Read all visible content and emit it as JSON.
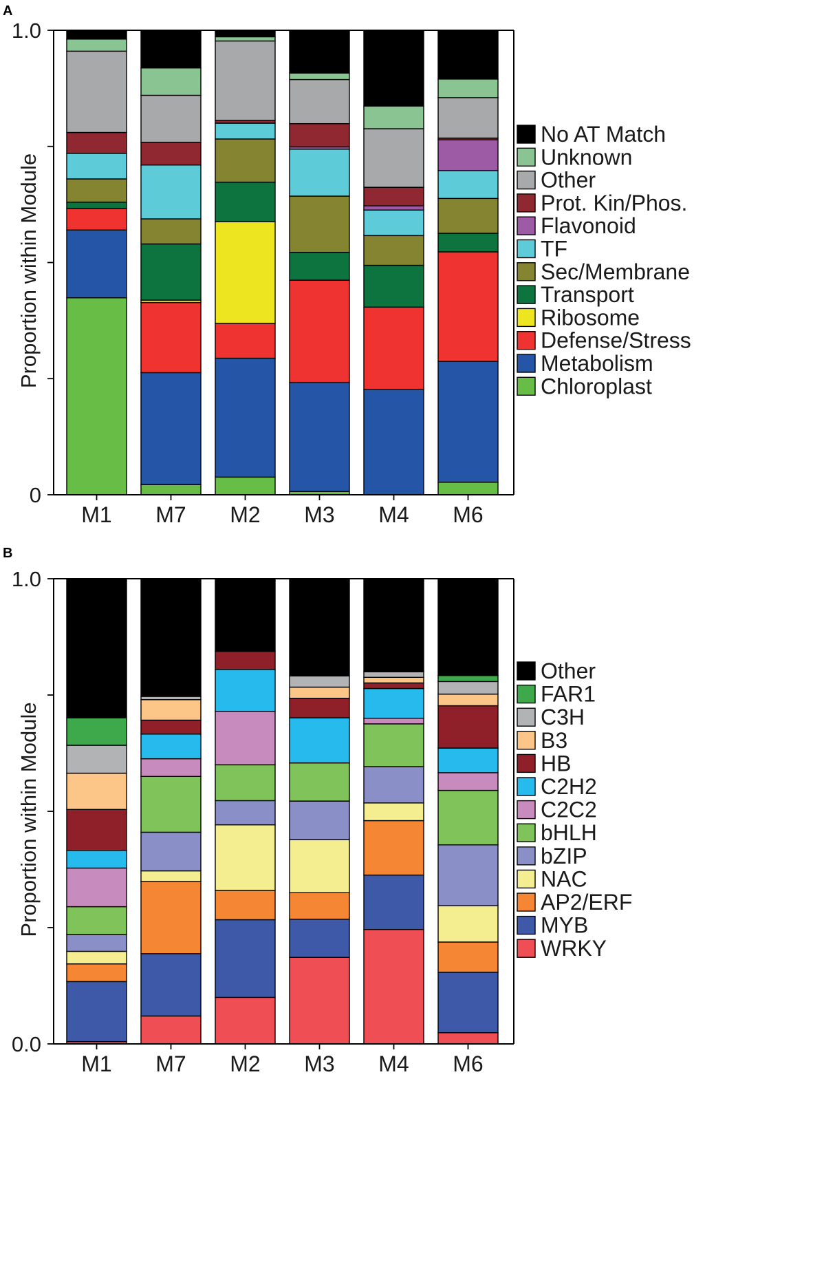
{
  "chart_data": [
    {
      "id": "A",
      "panel_label": "A",
      "type": "bar",
      "stacked": true,
      "ylabel": "Proportion within Module",
      "ylim": [
        0,
        1
      ],
      "yticks": [
        0,
        0.25,
        0.5,
        0.75,
        1.0
      ],
      "ytick_labels": [
        "0",
        "",
        "",
        "",
        "1.0"
      ],
      "categories": [
        "M1",
        "M7",
        "M2",
        "M3",
        "M4",
        "M6"
      ],
      "series": [
        {
          "name": "Chloroplast",
          "color": "#67bd45",
          "values": [
            0.424,
            0.022,
            0.038,
            0.007,
            0.0,
            0.027
          ]
        },
        {
          "name": "Metabolism",
          "color": "#2455a6",
          "values": [
            0.146,
            0.241,
            0.256,
            0.235,
            0.227,
            0.26
          ]
        },
        {
          "name": "Defense/Stress",
          "color": "#ee3331",
          "values": [
            0.046,
            0.151,
            0.075,
            0.22,
            0.177,
            0.236
          ]
        },
        {
          "name": "Ribosome",
          "color": "#eee521",
          "values": [
            0.0,
            0.005,
            0.219,
            0.0,
            0.0,
            0.0
          ]
        },
        {
          "name": "Transport",
          "color": "#0d7440",
          "values": [
            0.014,
            0.121,
            0.085,
            0.06,
            0.09,
            0.04
          ]
        },
        {
          "name": "Sec/Membrane",
          "color": "#848431",
          "values": [
            0.05,
            0.054,
            0.093,
            0.121,
            0.064,
            0.075
          ]
        },
        {
          "name": "TF",
          "color": "#5ecbd9",
          "values": [
            0.055,
            0.116,
            0.034,
            0.101,
            0.055,
            0.06
          ]
        },
        {
          "name": "Flavonoid",
          "color": "#9d5aa5",
          "values": [
            0.0,
            0.0,
            0.0,
            0.005,
            0.009,
            0.066
          ]
        },
        {
          "name": "Prot. Kin/Phos.",
          "color": "#8f2831",
          "values": [
            0.045,
            0.049,
            0.006,
            0.05,
            0.04,
            0.004
          ]
        },
        {
          "name": "Other",
          "color": "#a7a9ab",
          "values": [
            0.175,
            0.101,
            0.171,
            0.095,
            0.126,
            0.087
          ]
        },
        {
          "name": "Unknown",
          "color": "#8bc493",
          "values": [
            0.026,
            0.059,
            0.009,
            0.014,
            0.049,
            0.04
          ]
        },
        {
          "name": "No AT Match",
          "color": "#000000",
          "values": [
            0.019,
            0.081,
            0.014,
            0.092,
            0.163,
            0.105
          ]
        }
      ]
    },
    {
      "id": "B",
      "panel_label": "B",
      "type": "bar",
      "stacked": true,
      "ylabel": "Proportion within Module",
      "ylim": [
        0,
        1
      ],
      "yticks": [
        0,
        0.25,
        0.5,
        0.75,
        1.0
      ],
      "ytick_labels": [
        "0.0",
        "",
        "",
        "",
        "1.0"
      ],
      "categories": [
        "M1",
        "M7",
        "M2",
        "M3",
        "M4",
        "M6"
      ],
      "series": [
        {
          "name": "WRKY",
          "color": "#ef4f54",
          "values": [
            0.005,
            0.06,
            0.1,
            0.186,
            0.246,
            0.024
          ]
        },
        {
          "name": "MYB",
          "color": "#3d59a8",
          "values": [
            0.129,
            0.134,
            0.167,
            0.082,
            0.117,
            0.13
          ]
        },
        {
          "name": "AP2/ERF",
          "color": "#f58634",
          "values": [
            0.038,
            0.155,
            0.063,
            0.057,
            0.117,
            0.065
          ]
        },
        {
          "name": "NAC",
          "color": "#f4ee91",
          "values": [
            0.027,
            0.023,
            0.141,
            0.114,
            0.038,
            0.078
          ]
        },
        {
          "name": "bZIP",
          "color": "#8a90c7",
          "values": [
            0.036,
            0.083,
            0.052,
            0.083,
            0.078,
            0.131
          ]
        },
        {
          "name": "bHLH",
          "color": "#80c35a",
          "values": [
            0.06,
            0.12,
            0.077,
            0.082,
            0.092,
            0.117
          ]
        },
        {
          "name": "C2C2",
          "color": "#c78bbd",
          "values": [
            0.083,
            0.038,
            0.115,
            0.0,
            0.012,
            0.038
          ]
        },
        {
          "name": "C2H2",
          "color": "#27bbed",
          "values": [
            0.038,
            0.053,
            0.09,
            0.097,
            0.064,
            0.053
          ]
        },
        {
          "name": "HB",
          "color": "#8f2029",
          "values": [
            0.088,
            0.03,
            0.039,
            0.042,
            0.012,
            0.091
          ]
        },
        {
          "name": "B3",
          "color": "#fbc688",
          "values": [
            0.078,
            0.044,
            0.0,
            0.024,
            0.012,
            0.025
          ]
        },
        {
          "name": "C3H",
          "color": "#b1b3b5",
          "values": [
            0.06,
            0.007,
            0.0,
            0.024,
            0.012,
            0.027
          ]
        },
        {
          "name": "FAR1",
          "color": "#3da94b",
          "values": [
            0.059,
            0.0,
            0.0,
            0.0,
            0.0,
            0.013
          ]
        },
        {
          "name": "Other",
          "color": "#000000",
          "values": [
            0.299,
            0.253,
            0.156,
            0.209,
            0.2,
            0.208
          ]
        }
      ]
    }
  ]
}
